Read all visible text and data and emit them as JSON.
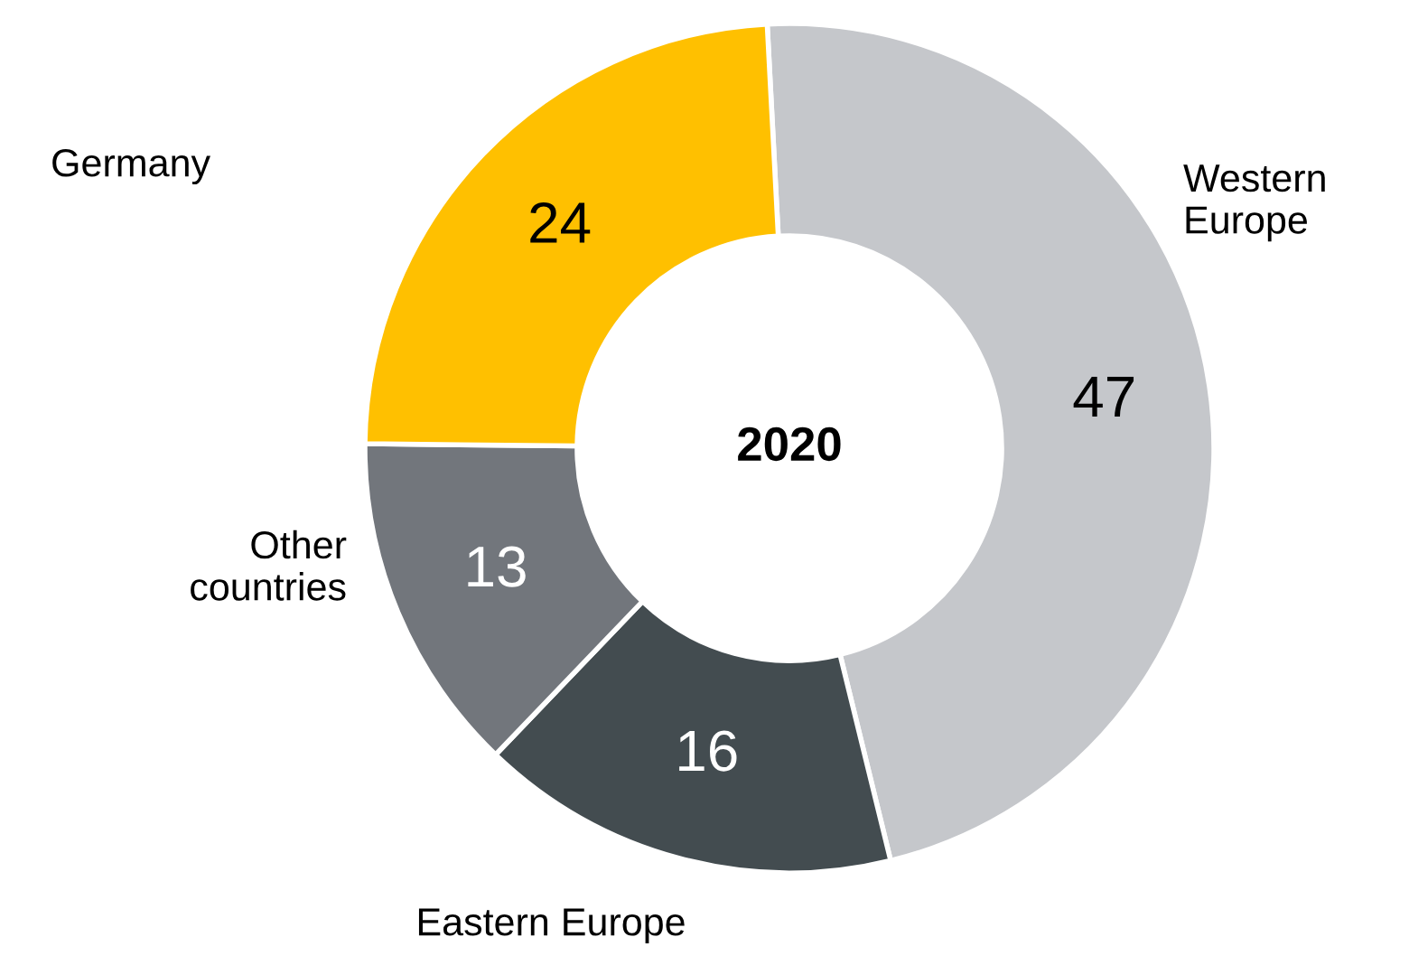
{
  "chart_data": {
    "type": "donut",
    "title": "2020",
    "categories": [
      "Western\nEurope",
      "Eastern Europe",
      "Other\ncountries",
      "Germany"
    ],
    "values": [
      47,
      16,
      13,
      24
    ],
    "colors": [
      "#c5c7cb",
      "#434c50",
      "#72767c",
      "#ffc000"
    ],
    "data_labels": true,
    "legend": false
  }
}
